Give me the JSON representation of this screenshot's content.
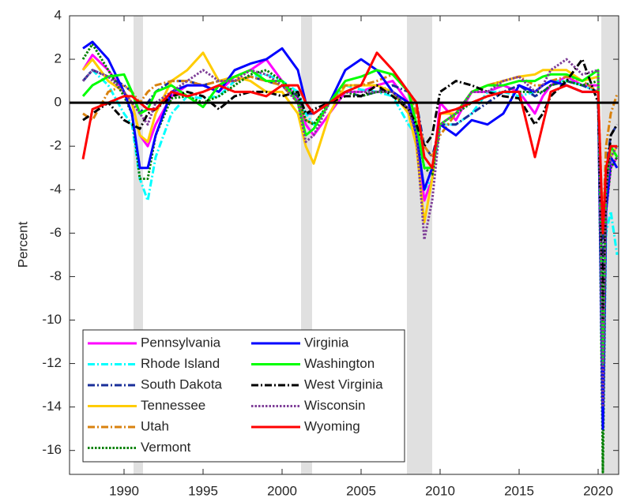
{
  "chart_data": {
    "type": "line",
    "ylabel": "Percent",
    "xlim": [
      1986.55,
      2021.3
    ],
    "ylim": [
      -17.1,
      4
    ],
    "xticks": [
      1990,
      1995,
      2000,
      2005,
      2010,
      2015,
      2020
    ],
    "yticks": [
      4,
      2,
      0,
      -2,
      -4,
      -6,
      -8,
      -10,
      -12,
      -14,
      -16
    ],
    "reference_line": 0,
    "recessions": [
      [
        1990.6,
        1991.2
      ],
      [
        2001.2,
        2001.9
      ],
      [
        2007.9,
        2009.5
      ],
      [
        2020.2,
        2021.3
      ]
    ],
    "legend": "lower left",
    "x": [
      1987.4,
      1988,
      1989,
      1990,
      1990.5,
      1991,
      1991.5,
      1992,
      1993,
      1994,
      1995,
      1996,
      1997,
      1998,
      1999,
      2000,
      2001,
      2001.5,
      2002,
      2003,
      2004,
      2005,
      2006,
      2007,
      2008,
      2008.5,
      2009,
      2009.5,
      2010,
      2011,
      2012,
      2013,
      2014,
      2015,
      2016,
      2016.5,
      2017,
      2018,
      2019,
      2020,
      2020.3,
      2020.5,
      2020.8,
      2021.2
    ],
    "series": [
      {
        "name": "Pennsylvania",
        "color": "#ff00ff",
        "style": "solid",
        "values": [
          1.5,
          2.2,
          1.5,
          0.5,
          0,
          -1.5,
          -2.0,
          -1.0,
          0.3,
          0.8,
          0.8,
          0.5,
          1.2,
          1.5,
          2.0,
          1.0,
          0.2,
          -1.0,
          -1.5,
          -0.5,
          0.5,
          0.5,
          0.8,
          1.0,
          0,
          -1.5,
          -4.5,
          -3.5,
          0,
          -0.8,
          0.5,
          0.5,
          0.8,
          0.5,
          -0.5,
          0.3,
          0.8,
          1.2,
          0.8,
          0.8,
          -14,
          -5,
          -3,
          -2.5
        ]
      },
      {
        "name": "Rhode Island",
        "color": "#00ffff",
        "style": "dash-dot",
        "values": [
          1.0,
          1.5,
          0.8,
          -0.5,
          -1.0,
          -3.5,
          -4.5,
          -2.5,
          -0.5,
          0.3,
          0.2,
          0.3,
          1.0,
          1.2,
          1.3,
          1.0,
          0.5,
          -0.5,
          -1.0,
          0,
          0.8,
          0.6,
          0.5,
          0.3,
          -1.0,
          -1.5,
          -4,
          -3.5,
          -1.0,
          -1.0,
          -0.5,
          0.5,
          0.5,
          0.3,
          0.5,
          0.8,
          1.0,
          1.0,
          0.8,
          0.5,
          -15,
          -6,
          -5,
          -7
        ]
      },
      {
        "name": "South Dakota",
        "color": "#1a2f9a",
        "style": "dash-dot",
        "values": [
          1.0,
          1.5,
          1.2,
          0.8,
          0.5,
          -0.5,
          0,
          0.5,
          1.0,
          1.0,
          0.8,
          1.0,
          1.0,
          1.2,
          1.0,
          0.8,
          0.3,
          -0.5,
          -0.5,
          0,
          0.5,
          0.3,
          0.5,
          0.8,
          0.5,
          0,
          -2.0,
          -2.5,
          -1.0,
          -1.0,
          -0.5,
          0,
          0.5,
          0.8,
          0.3,
          0.5,
          0.8,
          1.0,
          0.8,
          0.5,
          -8,
          -3,
          -1.5,
          -1
        ]
      },
      {
        "name": "Tennessee",
        "color": "#ffcc00",
        "style": "solid",
        "values": [
          1.5,
          2.0,
          1.0,
          0.5,
          0,
          -1.5,
          -1.8,
          -0.5,
          1.0,
          1.5,
          2.3,
          1.0,
          1.2,
          1.0,
          0.5,
          0.5,
          -0.5,
          -2.0,
          -2.8,
          -0.5,
          0.8,
          0.8,
          0.8,
          0.5,
          -0.5,
          -2.0,
          -5.5,
          -3.5,
          -0.5,
          -0.5,
          0.5,
          0.8,
          1.0,
          1.2,
          1.3,
          1.5,
          1.5,
          1.5,
          1.0,
          1.2,
          -14,
          -4,
          -2.5,
          -2
        ]
      },
      {
        "name": "Utah",
        "color": "#d9820f",
        "style": "dash-dot",
        "values": [
          -0.5,
          -0.8,
          0.5,
          0.8,
          0.5,
          0,
          0.5,
          0.8,
          1.0,
          1.0,
          0.8,
          1.0,
          1.0,
          1.2,
          1.0,
          0.8,
          0,
          -0.8,
          -1.0,
          0,
          0.8,
          0.8,
          1.0,
          1.3,
          0.5,
          -0.5,
          -2.0,
          -2.5,
          -1.5,
          -0.5,
          0.5,
          0.8,
          1.0,
          1.2,
          0.8,
          0.8,
          1.0,
          1.2,
          1.0,
          0.5,
          -6,
          -2,
          -0.5,
          0.4
        ]
      },
      {
        "name": "Vermont",
        "color": "#008000",
        "style": "dotted",
        "values": [
          2.0,
          2.7,
          1.5,
          0.3,
          -0.5,
          -3.5,
          -3.5,
          -1.5,
          0.2,
          0.3,
          0,
          0.3,
          0.8,
          1.3,
          1.5,
          1.0,
          0.3,
          -0.8,
          -1.0,
          0,
          0.5,
          0.3,
          0.5,
          0.5,
          -0.3,
          -1.2,
          -3.0,
          -3.3,
          -1.0,
          -0.5,
          0,
          0.3,
          0.5,
          0.5,
          0.5,
          0.5,
          0.8,
          1.0,
          0.8,
          1.0,
          -17,
          -5,
          -3,
          -2.5
        ]
      },
      {
        "name": "Virginia",
        "color": "#0000ff",
        "style": "solid",
        "values": [
          2.5,
          2.8,
          2.0,
          0.5,
          -0.5,
          -3.0,
          -3.0,
          -1.5,
          0.5,
          0.8,
          0.8,
          0.5,
          1.5,
          1.8,
          2.0,
          2.5,
          1.5,
          0,
          -0.5,
          0,
          1.5,
          2.0,
          1.5,
          0.5,
          0,
          -1.5,
          -4,
          -3.0,
          -1.0,
          -1.5,
          -0.8,
          -1.0,
          -0.5,
          0.8,
          0.5,
          0.8,
          1.0,
          0.8,
          0.5,
          0.5,
          -15,
          -5,
          -2.5,
          -3
        ]
      },
      {
        "name": "Washington",
        "color": "#00ff00",
        "style": "solid",
        "values": [
          0.3,
          0.8,
          1.2,
          1.3,
          0.5,
          -0.5,
          -0.3,
          0.5,
          0.8,
          0.3,
          -0.2,
          0.8,
          1.2,
          1.5,
          1.0,
          1.0,
          0,
          -1.5,
          -1.2,
          0,
          1.0,
          1.2,
          1.5,
          1.3,
          0.5,
          -1.0,
          -3.0,
          -3.0,
          -1.0,
          -0.5,
          0.5,
          0.8,
          0.8,
          1.0,
          1.0,
          1.2,
          1.3,
          1.3,
          1.0,
          1.5,
          -12,
          -4,
          -2,
          -2.5
        ]
      },
      {
        "name": "West Virginia",
        "color": "#000000",
        "style": "dash-dot",
        "values": [
          -0.8,
          -0.5,
          0,
          -0.8,
          -1.0,
          -1.2,
          -0.5,
          -0.3,
          0.3,
          0.5,
          0.3,
          -0.3,
          0.3,
          0.5,
          0.5,
          0.3,
          0.5,
          -0.5,
          -0.3,
          0,
          0.3,
          0.3,
          0.8,
          0.3,
          -0.3,
          -1.0,
          -2.0,
          -1.5,
          0.5,
          1.0,
          0.8,
          0.5,
          0.3,
          0.2,
          -1.0,
          -0.5,
          0.3,
          1.0,
          2.0,
          0,
          -10,
          -4,
          -1.5,
          -1
        ]
      },
      {
        "name": "Wisconsin",
        "color": "#7f3f98",
        "style": "dotted",
        "values": [
          1.0,
          1.5,
          1.2,
          0.5,
          0,
          -0.5,
          -1.0,
          0,
          0.5,
          1.0,
          1.5,
          1.0,
          1.0,
          1.5,
          1.3,
          0.8,
          0,
          -1.8,
          -1.5,
          0,
          0.5,
          0.5,
          0.5,
          0.5,
          -0.3,
          -1.5,
          -6.3,
          -4.5,
          -1.0,
          -0.5,
          0.5,
          0.5,
          1.0,
          1.2,
          0.5,
          0.8,
          1.5,
          2.0,
          1.3,
          1.5,
          -14,
          -4,
          -2.5,
          -2
        ]
      },
      {
        "name": "Wyoming",
        "color": "#ff0000",
        "style": "solid",
        "values": [
          -2.6,
          -0.3,
          0,
          0.3,
          0.3,
          0,
          -0.3,
          -0.3,
          0.5,
          0.3,
          0.5,
          0.8,
          0.5,
          0.5,
          0.3,
          0.8,
          0.8,
          0,
          -0.5,
          0,
          0.5,
          0.8,
          2.3,
          1.5,
          0.5,
          0,
          -2.5,
          -3.0,
          -0.5,
          -0.3,
          0,
          0.3,
          0.5,
          0.5,
          -2.5,
          -1.0,
          0.5,
          0.8,
          0.5,
          0.5,
          -6,
          -3,
          -2,
          -2
        ]
      }
    ]
  }
}
